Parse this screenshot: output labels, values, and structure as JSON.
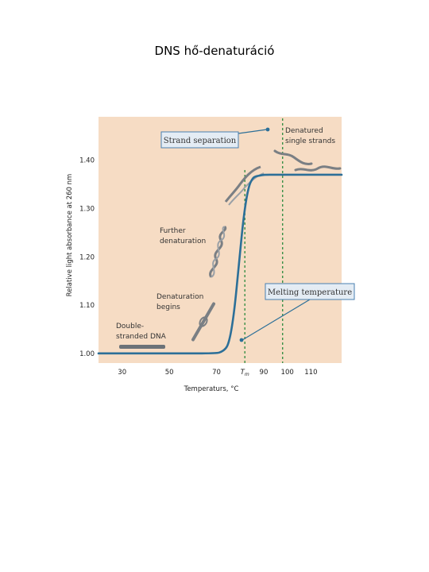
{
  "page": {
    "title": "DNS hő-denaturáció"
  },
  "colors": {
    "plot_background": "#f6dcc4",
    "curve": "#2c6f98",
    "guide": "#2b8a3e",
    "label_box_fill": "#e4ecf4",
    "label_box_border": "#4a7fb0",
    "strand": "#7a7f84"
  },
  "chart_data": {
    "type": "line",
    "title": "",
    "xlabel": "Temperaturs, °C",
    "ylabel": "Relative light absorbance at 260 nm",
    "xlim": [
      20,
      123
    ],
    "ylim": [
      0.98,
      1.49
    ],
    "x_ticks": [
      30,
      50,
      70,
      90,
      100,
      110
    ],
    "y_ticks": [
      1.0,
      1.1,
      1.2,
      1.3,
      1.4
    ],
    "y_tick_labels": [
      "1.00",
      "1.10",
      "1.20",
      "1.30",
      "1.40"
    ],
    "tm_label": "T",
    "tm_subscript": "m",
    "tm_value": 82,
    "guide_x": 98,
    "series": [
      {
        "name": "",
        "x": [
          20,
          50,
          70,
          72,
          74,
          75,
          76,
          77,
          78,
          79,
          80,
          81,
          82,
          83,
          84,
          85,
          86,
          88,
          90,
          95,
          100,
          123
        ],
        "y": [
          1.0,
          1.0,
          1.0,
          1.003,
          1.01,
          1.02,
          1.04,
          1.07,
          1.11,
          1.16,
          1.21,
          1.26,
          1.3,
          1.33,
          1.35,
          1.36,
          1.366,
          1.368,
          1.37,
          1.37,
          1.37,
          1.37
        ]
      }
    ],
    "annotations": {
      "strand_separation": "Strand separation",
      "denatured_line1": "Denatured",
      "denatured_line2": "single strands",
      "further_line1": "Further",
      "further_line2": "denaturation",
      "begins_line1": "Denaturation",
      "begins_line2": "begins",
      "double_line1": "Double-",
      "double_line2": "stranded DNA",
      "melting_temperature": "Melting temperature"
    }
  }
}
